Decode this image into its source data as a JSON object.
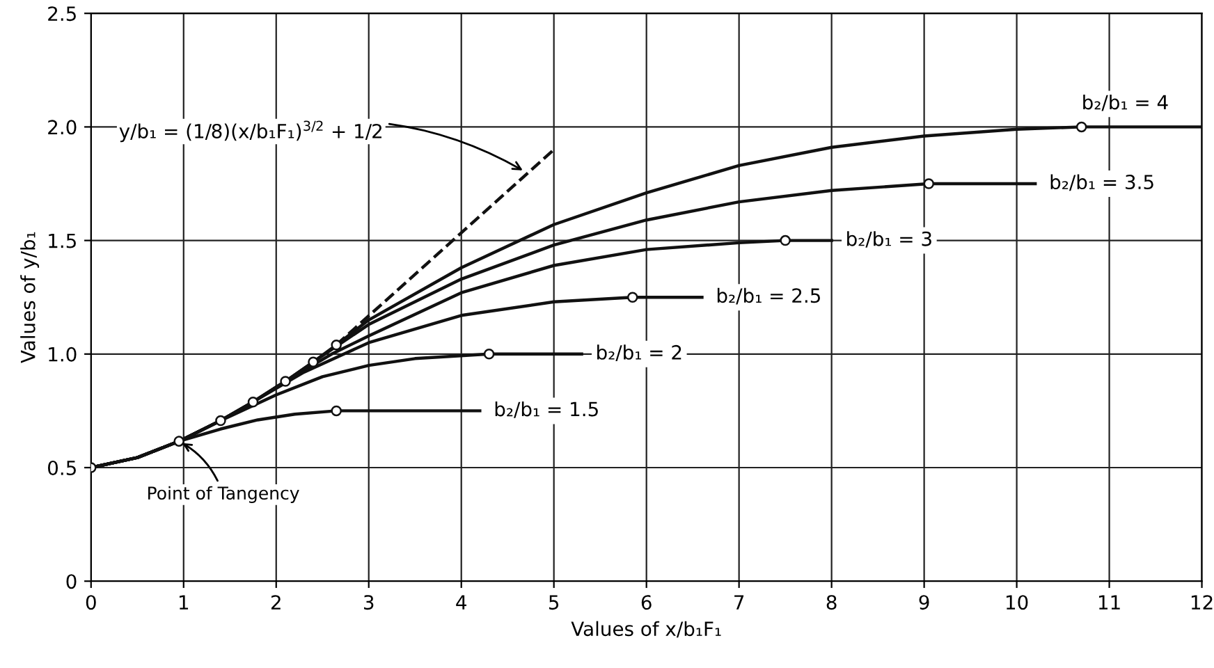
{
  "chart_data": {
    "type": "line",
    "xlabel": "Values of x/b₁F₁",
    "ylabel": "Values of y/b₁",
    "xlim": [
      0,
      12
    ],
    "ylim": [
      0,
      2.5
    ],
    "xticks": [
      0,
      1,
      2,
      3,
      4,
      5,
      6,
      7,
      8,
      9,
      10,
      11,
      12
    ],
    "yticks": [
      0,
      0.5,
      {
        "value": 1,
        "label": "1.0"
      },
      1.5,
      {
        "value": 2,
        "label": "2.0"
      },
      2.5
    ],
    "grid": true,
    "line_style": "solid",
    "marker": "none",
    "series": [
      {
        "name": "b₂/b₁ = 1.5",
        "color": "#111111",
        "x": [
          0,
          0.5,
          0.95,
          1.4,
          1.8,
          2.2,
          2.65,
          3.2,
          3.8,
          4.2
        ],
        "values": [
          0.5,
          0.544,
          0.616,
          0.67,
          0.71,
          0.735,
          0.75,
          0.75,
          0.75,
          0.75
        ]
      },
      {
        "name": "b₂/b₁ = 2",
        "color": "#111111",
        "x": [
          0,
          0.5,
          0.95,
          1.4,
          2,
          2.5,
          3,
          3.5,
          4.3,
          5.3
        ],
        "values": [
          0.5,
          0.544,
          0.616,
          0.707,
          0.82,
          0.9,
          0.95,
          0.98,
          1.0,
          1.0
        ]
      },
      {
        "name": "b₂/b₁ = 2.5",
        "color": "#111111",
        "x": [
          0,
          0.5,
          0.95,
          1.4,
          1.75,
          2.3,
          3,
          4,
          5,
          5.85,
          6.6
        ],
        "values": [
          0.5,
          0.544,
          0.616,
          0.707,
          0.789,
          0.92,
          1.05,
          1.17,
          1.23,
          1.25,
          1.25
        ]
      },
      {
        "name": "b₂/b₁ = 3",
        "color": "#111111",
        "x": [
          0,
          0.5,
          0.95,
          1.4,
          1.75,
          2.1,
          2.6,
          3,
          4,
          5,
          6,
          7,
          7.5,
          8.0
        ],
        "values": [
          0.5,
          0.544,
          0.616,
          0.707,
          0.789,
          0.88,
          1.0,
          1.08,
          1.27,
          1.39,
          1.46,
          1.49,
          1.5,
          1.5
        ]
      },
      {
        "name": "b₂/b₁ = 3.5",
        "color": "#111111",
        "x": [
          0,
          0.5,
          0.95,
          1.4,
          1.75,
          2.1,
          2.4,
          3,
          4,
          5,
          6,
          7,
          8,
          9.05,
          10.2
        ],
        "values": [
          0.5,
          0.544,
          0.616,
          0.707,
          0.789,
          0.88,
          0.965,
          1.13,
          1.33,
          1.48,
          1.59,
          1.67,
          1.72,
          1.75,
          1.75
        ]
      },
      {
        "name": "b₂/b₁ = 4",
        "color": "#111111",
        "x": [
          0,
          0.5,
          0.95,
          1.4,
          1.75,
          2.1,
          2.4,
          2.65,
          3,
          4,
          5,
          6,
          7,
          8,
          9,
          10,
          10.7,
          12
        ],
        "values": [
          0.5,
          0.544,
          0.616,
          0.707,
          0.789,
          0.88,
          0.965,
          1.04,
          1.15,
          1.38,
          1.57,
          1.71,
          1.83,
          1.91,
          1.96,
          1.99,
          2.0,
          2.0
        ]
      },
      {
        "color": "#111111",
        "type": "line",
        "line_style": "dashed",
        "x": [
          2.65,
          5
        ],
        "values": [
          1.04,
          1.9
        ]
      },
      {
        "color": "#111111",
        "type": "scatter",
        "marker": "circle",
        "x": [
          0,
          0.95,
          1.4,
          1.75,
          2.1,
          2.4,
          2.65,
          2.65,
          4.3,
          5.85,
          7.5,
          9.05,
          10.7
        ],
        "values": [
          0.5,
          0.616,
          0.707,
          0.789,
          0.88,
          0.965,
          1.04,
          0.75,
          1.0,
          1.25,
          1.5,
          1.75,
          2.0
        ]
      }
    ],
    "annotations": [
      {
        "text": "y/b₁ = (1/8)(x/b₁F₁)$^{3/2}$ + 1/2",
        "x": 4.7,
        "y": 1.8
      },
      {
        "text": "Point of Tangency",
        "x": 0.95,
        "y": 0.616
      }
    ]
  }
}
